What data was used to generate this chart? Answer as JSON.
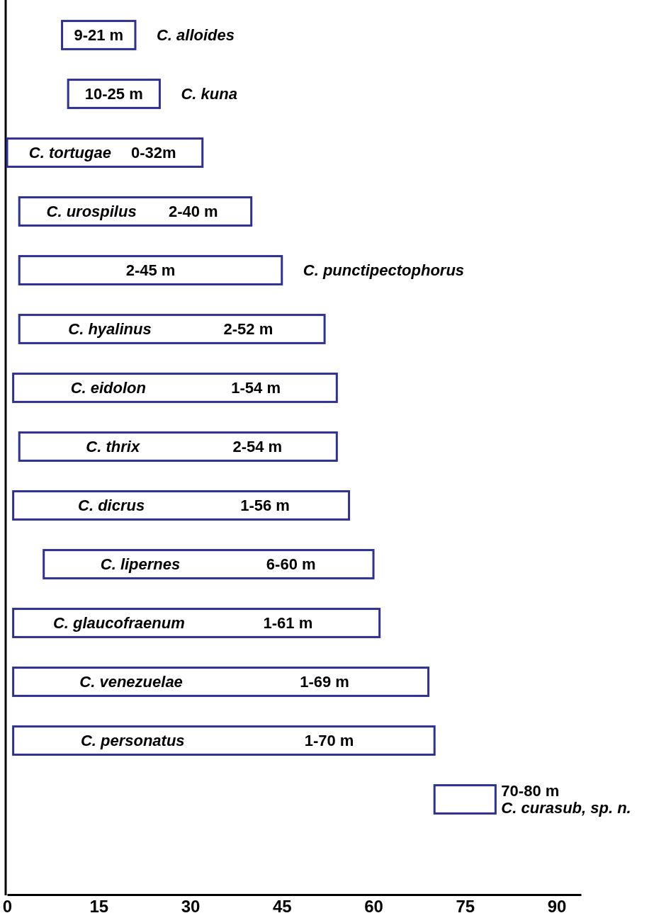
{
  "chart_data": {
    "type": "bar",
    "orientation": "horizontal",
    "categories": [
      "C. alloides",
      "C. kuna",
      "C. tortugae",
      "C. urospilus",
      "C. punctipectophorus",
      "C. hyalinus",
      "C. eidolon",
      "C. thrix",
      "C. dicrus",
      "C. lipernes",
      "C. glaucofraenum",
      "C. venezuelae",
      "C. personatus",
      "C. curasub, sp. n."
    ],
    "base": [
      9,
      10,
      0,
      2,
      2,
      2,
      1,
      2,
      1,
      6,
      1,
      1,
      1,
      70
    ],
    "values": [
      12,
      15,
      32,
      38,
      43,
      50,
      53,
      52,
      55,
      54,
      60,
      68,
      69,
      10
    ],
    "value_labels": [
      "9-21 m",
      "10-25 m",
      "0-32m",
      "2-40 m",
      "2-45 m",
      "2-52 m",
      "1-54 m",
      "2-54 m",
      "1-56 m",
      "6-60 m",
      "1-61 m",
      "1-69 m",
      "1-70 m",
      "70-80 m"
    ],
    "color": "#2e3192",
    "xlim": [
      0,
      94
    ],
    "xticks": [
      0,
      15,
      30,
      45,
      60,
      75,
      90
    ],
    "grid": false
  }
}
